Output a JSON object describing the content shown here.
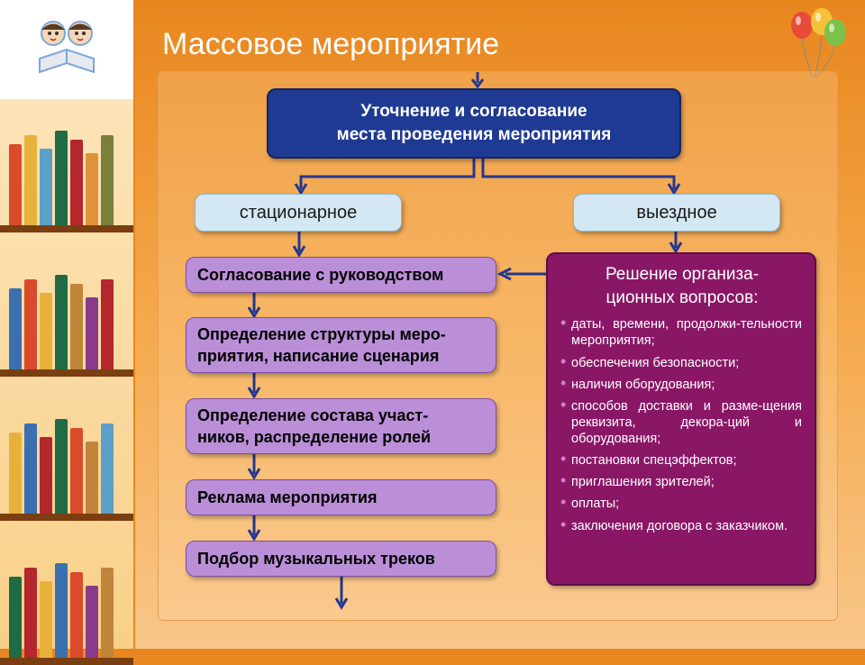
{
  "slide": {
    "title": "Массовое мероприятие",
    "background_gradient": [
      "#e8861e",
      "#f5a94c",
      "#f8c68a"
    ]
  },
  "flowchart": {
    "root": {
      "text": "Уточнение и согласование\nместа проведения мероприятия",
      "bg_color": "#1f3a93",
      "text_color": "#ffffff",
      "font_size": 19
    },
    "branches": {
      "left": {
        "label": "стационарное",
        "bg_color": "#d4e8f4"
      },
      "right": {
        "label": "выездное",
        "bg_color": "#d4e8f4"
      }
    },
    "steps": [
      {
        "text": "Согласование с руководством",
        "bg_color": "#bb8fd8"
      },
      {
        "text": "Определение структуры меро-\nприятия, написание сценария",
        "bg_color": "#bb8fd8"
      },
      {
        "text": "Определение состава участ-\nников, распределение ролей",
        "bg_color": "#bb8fd8"
      },
      {
        "text": "Реклама мероприятия",
        "bg_color": "#bb8fd8"
      },
      {
        "text": "Подбор музыкальных треков",
        "bg_color": "#bb8fd8"
      }
    ],
    "right_panel": {
      "title": "Решение организа-\nционных вопросов:",
      "bg_color": "#8a1766",
      "bullet_color": "#d37fc0",
      "items": [
        "даты, времени, продолжи-тельности мероприятия;",
        "обеспечения безопасности;",
        "наличия оборудования;",
        "способов доставки и разме-щения реквизита, декора-ций и оборудования;",
        "постановки спецэффектов;",
        "приглашения зрителей;",
        "оплаты;",
        "заключения договора с заказчиком."
      ]
    },
    "arrow_color": "#25388e"
  },
  "sidebar_books": {
    "shelf_colors": [
      [
        "#d94b2b",
        "#e8b23a",
        "#5aa0c8",
        "#1f6b45",
        "#b3272d",
        "#e0923a",
        "#7a7f3a"
      ],
      [
        "#3a6fb0",
        "#d94b2b",
        "#e8b23a",
        "#1f6b45",
        "#c0843a",
        "#8a3a8a",
        "#b3272d"
      ],
      [
        "#e8b23a",
        "#3a6fb0",
        "#b3272d",
        "#1f6b45",
        "#d94b2b",
        "#c0843a",
        "#5aa0c8"
      ],
      [
        "#1f6b45",
        "#b3272d",
        "#e8b23a",
        "#3a6fb0",
        "#d94b2b",
        "#8a3a8a",
        "#c0843a"
      ]
    ],
    "book_heights": [
      90,
      100,
      85,
      105,
      95,
      80,
      100
    ]
  },
  "balloons": {
    "colors": [
      "#e84b3a",
      "#f5c23a",
      "#7ac24b"
    ]
  }
}
